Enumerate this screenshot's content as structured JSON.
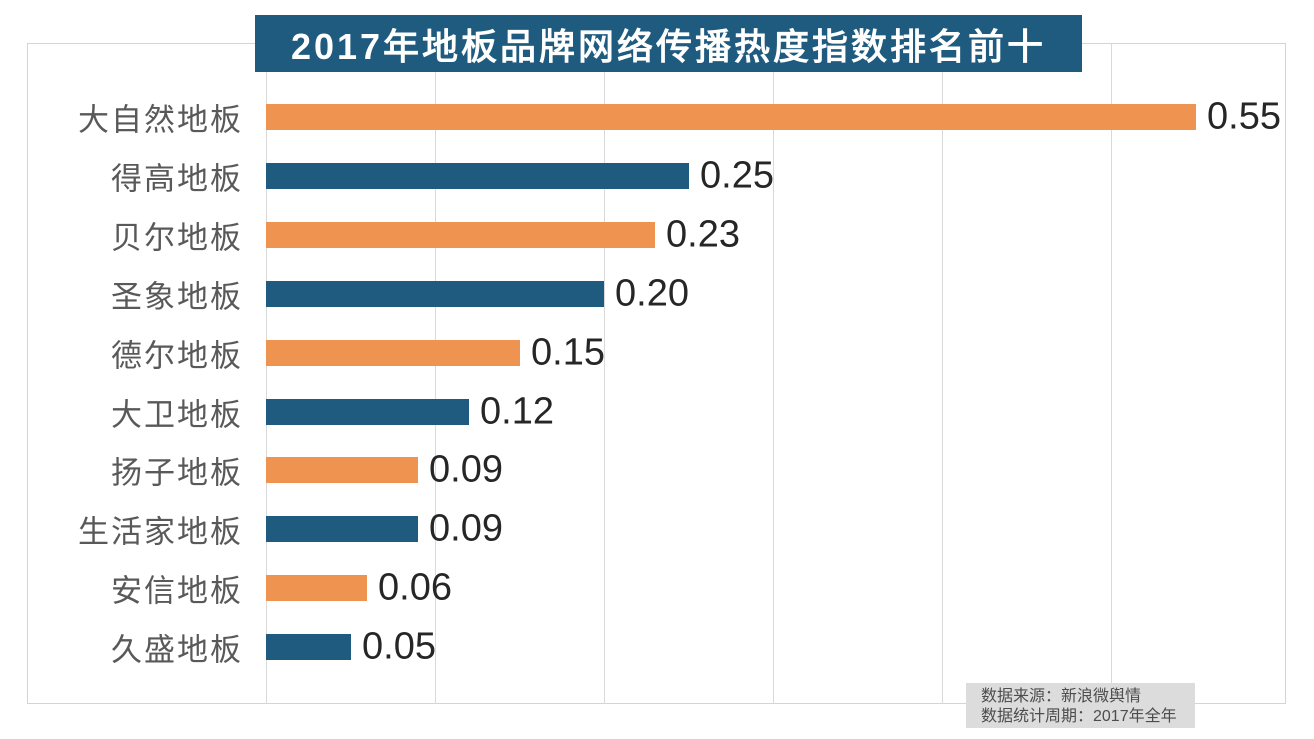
{
  "title": {
    "text": "2017年地板品牌网络传播热度指数排名前十"
  },
  "chart_data": {
    "type": "bar",
    "orientation": "horizontal",
    "title": "2017年地板品牌网络传播热度指数排名前十",
    "categories": [
      "大自然地板",
      "得高地板",
      "贝尔地板",
      "圣象地板",
      "德尔地板",
      "大卫地板",
      "扬子地板",
      "生活家地板",
      "安信地板",
      "久盛地板"
    ],
    "values": [
      0.55,
      0.25,
      0.23,
      0.2,
      0.15,
      0.12,
      0.09,
      0.09,
      0.06,
      0.05
    ],
    "value_labels": [
      "0.55",
      "0.25",
      "0.23",
      "0.20",
      "0.15",
      "0.12",
      "0.09",
      "0.09",
      "0.06",
      "0.05"
    ],
    "xlabel": "",
    "ylabel": "",
    "xlim": [
      0,
      0.6
    ],
    "gridlines_x": [
      0,
      0.1,
      0.2,
      0.3,
      0.4,
      0.5
    ],
    "grid": true,
    "legend_position": "none",
    "data_labels": true,
    "bar_colors_alternating": [
      "#EF9350",
      "#1E5B7E"
    ]
  },
  "footer": {
    "line1": "数据来源：新浪微舆情",
    "line2": "数据统计周期：2017年全年"
  },
  "colors": {
    "title_bg": "#1E5B7E",
    "title_text": "#FFFFFF",
    "orange": "#EF9350",
    "teal": "#1E5B7E",
    "gridline": "#D9D9D9",
    "plot_border": "#D4D4D4",
    "category_label": "#595959",
    "value_label": "#262626",
    "footer_bg": "#DCDCDC",
    "footer_text": "#4D4D4D",
    "background": "#FFFFFF"
  }
}
